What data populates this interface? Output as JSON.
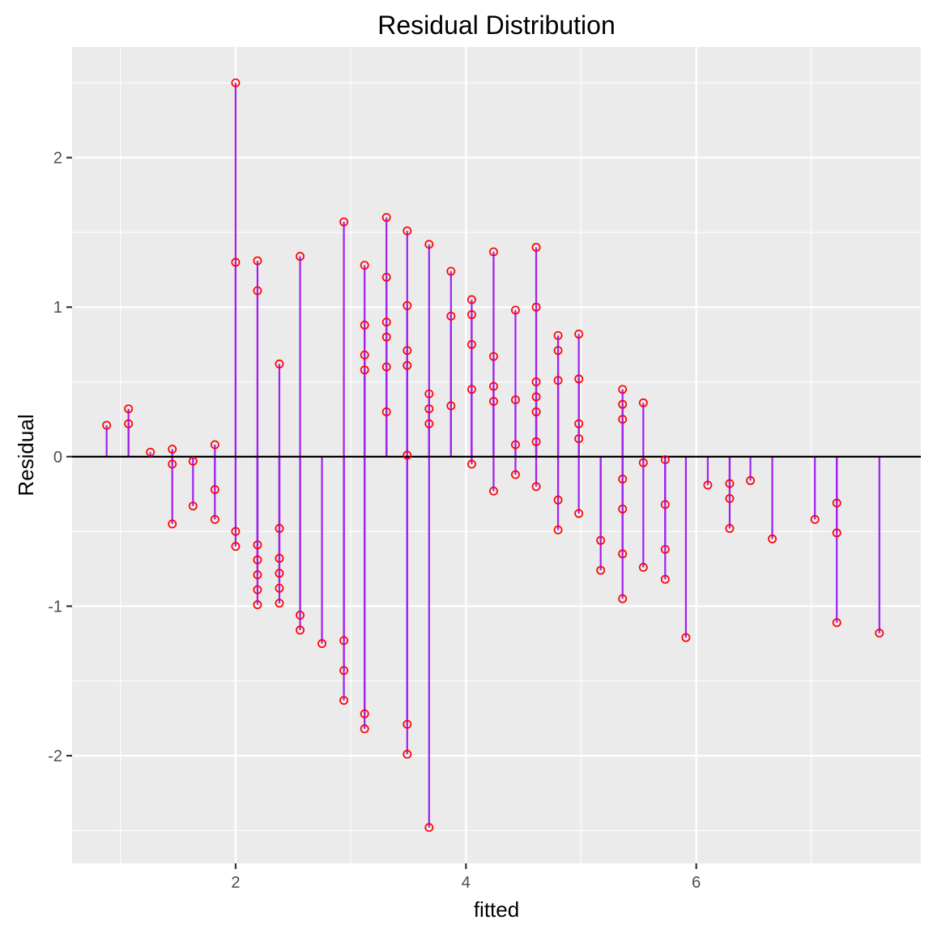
{
  "chart_data": {
    "type": "scatter",
    "title": "Residual Distribution",
    "xlabel": "fitted",
    "ylabel": "Residual",
    "xlim": [
      0.58,
      7.95
    ],
    "ylim": [
      -2.72,
      2.74
    ],
    "x_ticks": [
      2,
      4,
      6
    ],
    "x_tick_labels": [
      "2",
      "4",
      "6"
    ],
    "y_ticks": [
      -2,
      -1,
      0,
      1,
      2
    ],
    "y_tick_labels": [
      "-2",
      "-1",
      "0",
      "1",
      "2"
    ],
    "grid": true,
    "reference_line": 0,
    "background_color": "#ebebeb",
    "grid_color": "#ffffff",
    "segment_color": "#a020f0",
    "point_color": "#ff0000",
    "reference_line_color": "#000000",
    "points": [
      [
        0.88,
        0.21
      ],
      [
        1.07,
        0.32
      ],
      [
        1.07,
        0.22
      ],
      [
        1.26,
        0.03
      ],
      [
        1.45,
        0.05
      ],
      [
        1.45,
        -0.05
      ],
      [
        1.45,
        -0.45
      ],
      [
        1.63,
        -0.03
      ],
      [
        1.63,
        -0.33
      ],
      [
        1.82,
        0.08
      ],
      [
        1.82,
        -0.22
      ],
      [
        1.82,
        -0.42
      ],
      [
        2.0,
        2.5
      ],
      [
        2.0,
        1.3
      ],
      [
        2.0,
        -0.5
      ],
      [
        2.0,
        -0.6
      ],
      [
        2.19,
        1.31
      ],
      [
        2.19,
        1.11
      ],
      [
        2.19,
        -0.59
      ],
      [
        2.19,
        -0.69
      ],
      [
        2.19,
        -0.79
      ],
      [
        2.19,
        -0.89
      ],
      [
        2.19,
        -0.99
      ],
      [
        2.38,
        0.62
      ],
      [
        2.38,
        -0.48
      ],
      [
        2.38,
        -0.68
      ],
      [
        2.38,
        -0.78
      ],
      [
        2.38,
        -0.88
      ],
      [
        2.38,
        -0.98
      ],
      [
        2.56,
        1.34
      ],
      [
        2.56,
        -1.06
      ],
      [
        2.56,
        -1.16
      ],
      [
        2.75,
        -1.25
      ],
      [
        2.94,
        1.57
      ],
      [
        2.94,
        -1.23
      ],
      [
        2.94,
        -1.43
      ],
      [
        2.94,
        -1.63
      ],
      [
        3.12,
        1.28
      ],
      [
        3.12,
        0.88
      ],
      [
        3.12,
        0.68
      ],
      [
        3.12,
        0.58
      ],
      [
        3.12,
        -1.72
      ],
      [
        3.12,
        -1.82
      ],
      [
        3.31,
        1.6
      ],
      [
        3.31,
        1.2
      ],
      [
        3.31,
        0.9
      ],
      [
        3.31,
        0.8
      ],
      [
        3.31,
        0.6
      ],
      [
        3.31,
        0.3
      ],
      [
        3.49,
        1.51
      ],
      [
        3.49,
        1.01
      ],
      [
        3.49,
        0.71
      ],
      [
        3.49,
        0.61
      ],
      [
        3.49,
        0.01
      ],
      [
        3.49,
        -1.79
      ],
      [
        3.49,
        -1.99
      ],
      [
        3.68,
        1.42
      ],
      [
        3.68,
        0.42
      ],
      [
        3.68,
        0.32
      ],
      [
        3.68,
        0.22
      ],
      [
        3.68,
        -2.48
      ],
      [
        3.87,
        1.24
      ],
      [
        3.87,
        0.94
      ],
      [
        3.87,
        0.34
      ],
      [
        4.05,
        1.05
      ],
      [
        4.05,
        0.95
      ],
      [
        4.05,
        0.75
      ],
      [
        4.05,
        0.45
      ],
      [
        4.05,
        -0.05
      ],
      [
        4.24,
        1.37
      ],
      [
        4.24,
        0.67
      ],
      [
        4.24,
        0.47
      ],
      [
        4.24,
        0.37
      ],
      [
        4.24,
        -0.23
      ],
      [
        4.43,
        0.98
      ],
      [
        4.43,
        0.38
      ],
      [
        4.43,
        0.08
      ],
      [
        4.43,
        -0.12
      ],
      [
        4.61,
        1.4
      ],
      [
        4.61,
        1.0
      ],
      [
        4.61,
        0.5
      ],
      [
        4.61,
        0.4
      ],
      [
        4.61,
        0.3
      ],
      [
        4.61,
        0.1
      ],
      [
        4.61,
        -0.2
      ],
      [
        4.8,
        0.81
      ],
      [
        4.8,
        0.71
      ],
      [
        4.8,
        0.51
      ],
      [
        4.8,
        -0.29
      ],
      [
        4.8,
        -0.49
      ],
      [
        4.98,
        0.82
      ],
      [
        4.98,
        0.52
      ],
      [
        4.98,
        0.22
      ],
      [
        4.98,
        0.12
      ],
      [
        4.98,
        -0.38
      ],
      [
        5.17,
        -0.56
      ],
      [
        5.17,
        -0.76
      ],
      [
        5.36,
        0.45
      ],
      [
        5.36,
        0.35
      ],
      [
        5.36,
        0.25
      ],
      [
        5.36,
        -0.15
      ],
      [
        5.36,
        -0.35
      ],
      [
        5.36,
        -0.65
      ],
      [
        5.36,
        -0.95
      ],
      [
        5.54,
        0.36
      ],
      [
        5.54,
        -0.04
      ],
      [
        5.54,
        -0.74
      ],
      [
        5.73,
        -0.02
      ],
      [
        5.73,
        -0.32
      ],
      [
        5.73,
        -0.62
      ],
      [
        5.73,
        -0.82
      ],
      [
        5.91,
        -1.21
      ],
      [
        6.1,
        -0.19
      ],
      [
        6.29,
        -0.18
      ],
      [
        6.29,
        -0.28
      ],
      [
        6.29,
        -0.48
      ],
      [
        6.47,
        -0.16
      ],
      [
        6.66,
        -0.55
      ],
      [
        7.03,
        -0.42
      ],
      [
        7.22,
        -0.31
      ],
      [
        7.22,
        -0.51
      ],
      [
        7.22,
        -1.11
      ],
      [
        7.59,
        -1.18
      ]
    ]
  }
}
